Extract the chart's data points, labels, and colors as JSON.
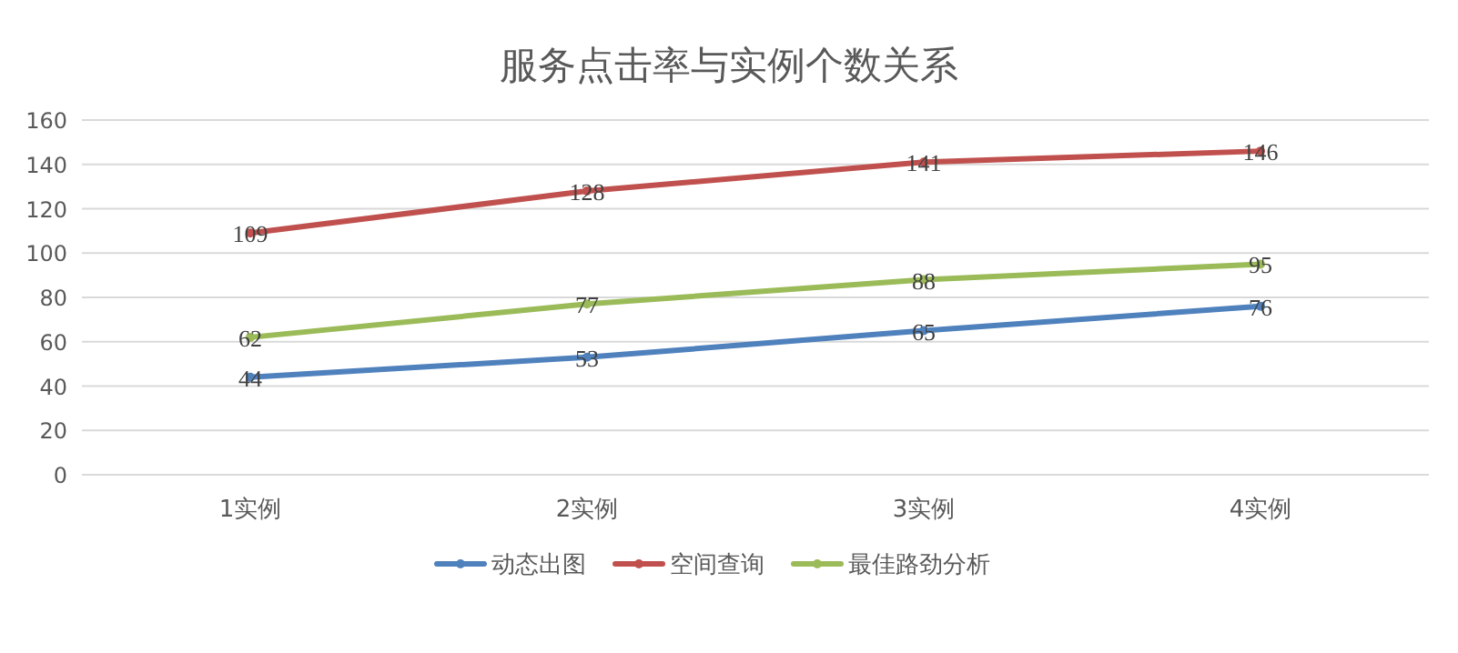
{
  "chart_data": {
    "type": "line",
    "title": "服务点击率与实例个数关系",
    "categories": [
      "1实例",
      "2实例",
      "3实例",
      "4实例"
    ],
    "series": [
      {
        "name": "动态出图",
        "color": "#4f81bd",
        "values": [
          44,
          53,
          65,
          76
        ]
      },
      {
        "name": "空间查询",
        "color": "#c0504d",
        "values": [
          109,
          128,
          141,
          146
        ]
      },
      {
        "name": "最佳路劲分析",
        "color": "#9bbb59",
        "values": [
          62,
          77,
          88,
          95
        ]
      }
    ],
    "ylim": [
      0,
      160
    ],
    "yticks": [
      0,
      20,
      40,
      60,
      80,
      100,
      120,
      140,
      160
    ],
    "grid": "y",
    "legend": "bottom",
    "marker": "circle",
    "data_labels": true
  }
}
